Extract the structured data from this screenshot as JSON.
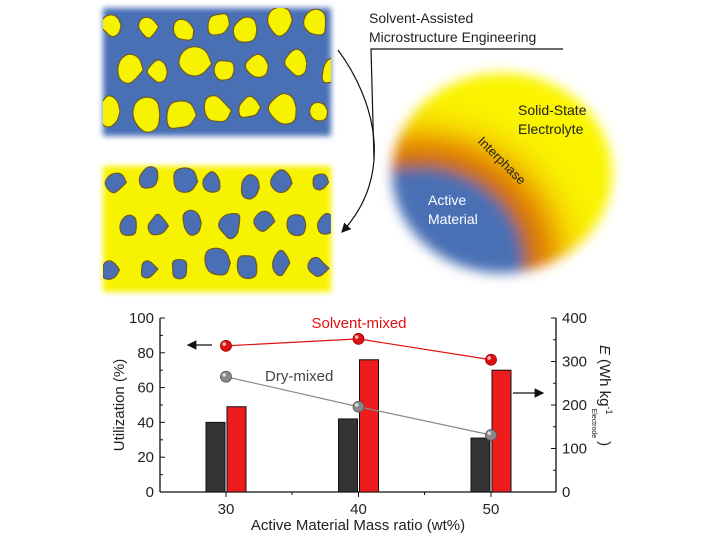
{
  "diagram": {
    "process_label_line1": "Solvent-Assisted",
    "process_label_line2": "Microstructure Engineering",
    "sse_label_line1": "Solid-State",
    "sse_label_line2": "Electrolyte",
    "interphase_label": "Interphase",
    "am_label_line1": "Active",
    "am_label_line2": "Material",
    "colors": {
      "active_material": "#4a6fb5",
      "electrolyte": "#f7f200",
      "interphase": "#e07a00"
    }
  },
  "chart_data": {
    "type": "bar+line",
    "xlabel": "Active Material Mass ratio (wt%)",
    "ylabel": "Utilization (%)",
    "y2label_main": "E",
    "y2label_unit": "(Wh kg",
    "y2label_sup": "-1",
    "y2label_sub": "Electrode",
    "y2label_close": ")",
    "categories": [
      "30",
      "40",
      "50"
    ],
    "ylim": [
      0,
      100
    ],
    "yticks": [
      "0",
      "20",
      "40",
      "60",
      "80",
      "100"
    ],
    "y2lim": [
      0,
      400
    ],
    "y2ticks": [
      "0",
      "100",
      "200",
      "300",
      "400"
    ],
    "bar_series": [
      {
        "axis": "left",
        "color": "#333333",
        "values": [
          40,
          42,
          31
        ]
      },
      {
        "axis": "left",
        "color": "#ee1c1c",
        "values": [
          49,
          76,
          70
        ]
      }
    ],
    "line_series": [
      {
        "name": "Solvent-mixed",
        "axis": "right",
        "color": "#e01010",
        "values": [
          336,
          352,
          304
        ]
      },
      {
        "name": "Dry-mixed",
        "axis": "right",
        "color": "#888888",
        "values": [
          265,
          196,
          131
        ]
      }
    ],
    "grid": false
  }
}
